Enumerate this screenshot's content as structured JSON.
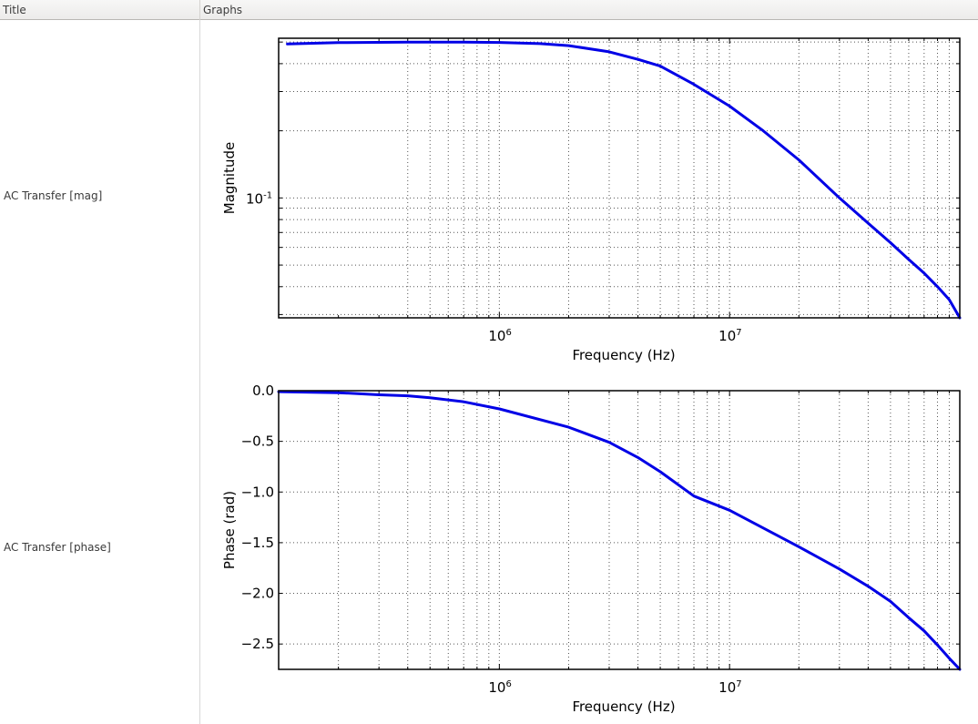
{
  "header": {
    "columns": [
      {
        "label": "Title"
      },
      {
        "label": "Graphs"
      }
    ]
  },
  "rows": [
    {
      "title": "AC Transfer [mag]"
    },
    {
      "title": "AC Transfer [phase]"
    }
  ],
  "colors": {
    "trace": "#0000e6",
    "axis": "#000000",
    "grid": "#555555",
    "header_bg": "#efeeed"
  },
  "chart_data": [
    {
      "type": "line",
      "title": "",
      "xlabel": "Frequency (Hz)",
      "ylabel": "Magnitude",
      "xscale": "log",
      "yscale": "log",
      "xlim": [
        110000,
        100000000
      ],
      "ylim": [
        0.029,
        0.52
      ],
      "grid": true,
      "x_tick_labels": [
        {
          "value": 1000000,
          "base": "10",
          "exp": "6"
        },
        {
          "value": 10000000,
          "base": "10",
          "exp": "7"
        }
      ],
      "y_tick_labels": [
        {
          "value": 0.1,
          "base": "10",
          "exp": "-1"
        }
      ],
      "x_minor_grid": [
        400000,
        500000,
        600000,
        700000,
        800000,
        900000,
        1000000,
        2000000,
        3000000,
        4000000,
        5000000,
        6000000,
        7000000,
        8000000,
        9000000,
        10000000,
        20000000,
        30000000,
        40000000,
        50000000,
        60000000,
        70000000,
        80000000,
        90000000
      ],
      "x_minor_ticks_only": [
        200000,
        300000
      ],
      "y_grid": [
        0.03,
        0.04,
        0.05,
        0.06,
        0.07,
        0.08,
        0.09,
        0.1,
        0.2,
        0.3,
        0.4,
        0.5
      ],
      "series": [
        {
          "name": "AC Transfer [mag]",
          "x": [
            120000,
            200000,
            400000,
            700000,
            1000000,
            1500000,
            2000000,
            3000000,
            4000000,
            5000000,
            7000000,
            10000000,
            14000000,
            20000000,
            30000000,
            40000000,
            50000000,
            60000000,
            70000000,
            80000000,
            90000000,
            100000000
          ],
          "y": [
            0.49,
            0.497,
            0.5,
            0.5,
            0.498,
            0.492,
            0.482,
            0.452,
            0.418,
            0.39,
            0.323,
            0.258,
            0.2,
            0.148,
            0.1,
            0.077,
            0.063,
            0.053,
            0.046,
            0.04,
            0.035,
            0.029
          ]
        }
      ]
    },
    {
      "type": "line",
      "title": "",
      "xlabel": "Frequency (Hz)",
      "ylabel": "Phase (rad)",
      "xscale": "log",
      "yscale": "linear",
      "xlim": [
        110000,
        100000000
      ],
      "ylim": [
        -2.75,
        0.0
      ],
      "grid": true,
      "x_tick_labels": [
        {
          "value": 1000000,
          "base": "10",
          "exp": "6"
        },
        {
          "value": 10000000,
          "base": "10",
          "exp": "7"
        }
      ],
      "y_ticks": [
        0.0,
        -0.5,
        -1.0,
        -1.5,
        -2.0,
        -2.5
      ],
      "y_tick_labels_text": [
        "0.0",
        "−0.5",
        "−1.0",
        "−1.5",
        "−2.0",
        "−2.5"
      ],
      "x_minor_grid": [
        200000,
        300000,
        400000,
        500000,
        600000,
        700000,
        800000,
        900000,
        1000000,
        2000000,
        3000000,
        4000000,
        5000000,
        6000000,
        7000000,
        8000000,
        9000000,
        10000000,
        20000000,
        30000000,
        40000000,
        50000000,
        60000000,
        70000000,
        80000000,
        90000000
      ],
      "series": [
        {
          "name": "AC Transfer [phase]",
          "x": [
            110000,
            200000,
            300000,
            400000,
            500000,
            700000,
            1000000,
            2000000,
            3000000,
            4000000,
            5000000,
            7000000,
            10000000,
            20000000,
            30000000,
            40000000,
            50000000,
            60000000,
            70000000,
            80000000,
            90000000,
            100000000
          ],
          "y": [
            -0.01,
            -0.02,
            -0.04,
            -0.05,
            -0.07,
            -0.11,
            -0.18,
            -0.36,
            -0.51,
            -0.66,
            -0.8,
            -1.04,
            -1.18,
            -1.54,
            -1.76,
            -1.93,
            -2.08,
            -2.24,
            -2.37,
            -2.51,
            -2.64,
            -2.75
          ]
        }
      ]
    }
  ]
}
